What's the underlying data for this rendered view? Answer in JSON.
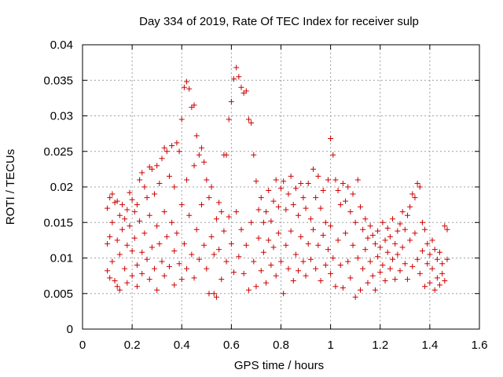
{
  "chart_data": {
    "type": "scatter",
    "title": "Day 334 of 2019, Rate Of TEC Index for receiver sulp",
    "xlabel": "GPS time / hours",
    "ylabel": "ROTI / TECUs",
    "xlim": [
      0,
      1.6
    ],
    "ylim": [
      0,
      0.04
    ],
    "x_ticks": [
      "0",
      "0.2",
      "0.4",
      "0.6",
      "0.8",
      "1",
      "1.2",
      "1.4",
      "1.6"
    ],
    "y_ticks": [
      "0",
      "0.005",
      "0.01",
      "0.015",
      "0.02",
      "0.025",
      "0.03",
      "0.035",
      "0.04"
    ],
    "grid": true,
    "marker": "+",
    "series": [
      {
        "color": "#cc0000",
        "points": [
          [
            0.1,
            0.017
          ],
          [
            0.1,
            0.012
          ],
          [
            0.1,
            0.0082
          ],
          [
            0.11,
            0.0185
          ],
          [
            0.11,
            0.013
          ],
          [
            0.11,
            0.0072
          ],
          [
            0.12,
            0.019
          ],
          [
            0.12,
            0.015
          ],
          [
            0.12,
            0.0095
          ],
          [
            0.13,
            0.0178
          ],
          [
            0.13,
            0.0068
          ],
          [
            0.14,
            0.018
          ],
          [
            0.14,
            0.0125
          ],
          [
            0.14,
            0.006
          ],
          [
            0.15,
            0.016
          ],
          [
            0.15,
            0.0105
          ],
          [
            0.15,
            0.0055
          ],
          [
            0.16,
            0.0175
          ],
          [
            0.16,
            0.014
          ],
          [
            0.17,
            0.0155
          ],
          [
            0.17,
            0.0085
          ],
          [
            0.18,
            0.0168
          ],
          [
            0.18,
            0.0118
          ],
          [
            0.18,
            0.0065
          ],
          [
            0.19,
            0.0192
          ],
          [
            0.19,
            0.0145
          ],
          [
            0.2,
            0.0182
          ],
          [
            0.2,
            0.011
          ],
          [
            0.2,
            0.0075
          ],
          [
            0.21,
            0.0165
          ],
          [
            0.21,
            0.0128
          ],
          [
            0.22,
            0.0175
          ],
          [
            0.22,
            0.009
          ],
          [
            0.22,
            0.006
          ],
          [
            0.23,
            0.021
          ],
          [
            0.23,
            0.0152
          ],
          [
            0.24,
            0.022
          ],
          [
            0.24,
            0.0108
          ],
          [
            0.24,
            0.0078
          ],
          [
            0.25,
            0.02
          ],
          [
            0.25,
            0.0135
          ],
          [
            0.26,
            0.0185
          ],
          [
            0.26,
            0.0098
          ],
          [
            0.27,
            0.0228
          ],
          [
            0.27,
            0.016
          ],
          [
            0.27,
            0.007
          ],
          [
            0.28,
            0.0225
          ],
          [
            0.28,
            0.0115
          ],
          [
            0.29,
            0.019
          ],
          [
            0.29,
            0.0085
          ],
          [
            0.3,
            0.023
          ],
          [
            0.3,
            0.0145
          ],
          [
            0.3,
            0.0055
          ],
          [
            0.31,
            0.0205
          ],
          [
            0.31,
            0.012
          ],
          [
            0.32,
            0.024
          ],
          [
            0.32,
            0.0095
          ],
          [
            0.33,
            0.0255
          ],
          [
            0.33,
            0.0165
          ],
          [
            0.33,
            0.0075
          ],
          [
            0.34,
            0.025
          ],
          [
            0.34,
            0.013
          ],
          [
            0.35,
            0.0215
          ],
          [
            0.35,
            0.0088
          ],
          [
            0.36,
            0.0258
          ],
          [
            0.36,
            0.015
          ],
          [
            0.37,
            0.02
          ],
          [
            0.37,
            0.011
          ],
          [
            0.37,
            0.0062
          ],
          [
            0.38,
            0.0262
          ],
          [
            0.38,
            0.0135
          ],
          [
            0.39,
            0.025
          ],
          [
            0.39,
            0.0092
          ],
          [
            0.4,
            0.0295
          ],
          [
            0.4,
            0.0175
          ],
          [
            0.4,
            0.007
          ],
          [
            0.41,
            0.034
          ],
          [
            0.41,
            0.012
          ],
          [
            0.42,
            0.0348
          ],
          [
            0.42,
            0.021
          ],
          [
            0.42,
            0.0085
          ],
          [
            0.43,
            0.0338
          ],
          [
            0.43,
            0.016
          ],
          [
            0.44,
            0.0312
          ],
          [
            0.44,
            0.0105
          ],
          [
            0.45,
            0.0315
          ],
          [
            0.45,
            0.023
          ],
          [
            0.45,
            0.0072
          ],
          [
            0.46,
            0.0272
          ],
          [
            0.46,
            0.014
          ],
          [
            0.47,
            0.0245
          ],
          [
            0.47,
            0.0098
          ],
          [
            0.48,
            0.0255
          ],
          [
            0.48,
            0.0175
          ],
          [
            0.49,
            0.0235
          ],
          [
            0.49,
            0.0118
          ],
          [
            0.5,
            0.021
          ],
          [
            0.5,
            0.0085
          ],
          [
            0.51,
            0.0185
          ],
          [
            0.51,
            0.005
          ],
          [
            0.52,
            0.02
          ],
          [
            0.52,
            0.013
          ],
          [
            0.53,
            0.005
          ],
          [
            0.53,
            0.0105
          ],
          [
            0.54,
            0.0155
          ],
          [
            0.54,
            0.0045
          ],
          [
            0.55,
            0.0178
          ],
          [
            0.55,
            0.0112
          ],
          [
            0.56,
            0.0165
          ],
          [
            0.56,
            0.007
          ],
          [
            0.57,
            0.0245
          ],
          [
            0.57,
            0.0138
          ],
          [
            0.58,
            0.0245
          ],
          [
            0.58,
            0.0095
          ],
          [
            0.59,
            0.0295
          ],
          [
            0.59,
            0.0158
          ],
          [
            0.6,
            0.032
          ],
          [
            0.6,
            0.012
          ],
          [
            0.61,
            0.0352
          ],
          [
            0.61,
            0.008
          ],
          [
            0.62,
            0.0368
          ],
          [
            0.62,
            0.0165
          ],
          [
            0.63,
            0.0355
          ],
          [
            0.63,
            0.0102
          ],
          [
            0.64,
            0.034
          ],
          [
            0.64,
            0.014
          ],
          [
            0.65,
            0.0332
          ],
          [
            0.65,
            0.0078
          ],
          [
            0.66,
            0.0335
          ],
          [
            0.66,
            0.0118
          ],
          [
            0.67,
            0.0295
          ],
          [
            0.67,
            0.0055
          ],
          [
            0.68,
            0.029
          ],
          [
            0.68,
            0.015
          ],
          [
            0.69,
            0.0245
          ],
          [
            0.69,
            0.0095
          ],
          [
            0.7,
            0.0208
          ],
          [
            0.7,
            0.006
          ],
          [
            0.71,
            0.0168
          ],
          [
            0.71,
            0.0128
          ],
          [
            0.72,
            0.0185
          ],
          [
            0.72,
            0.0082
          ],
          [
            0.73,
            0.015
          ],
          [
            0.73,
            0.0108
          ],
          [
            0.74,
            0.0165
          ],
          [
            0.74,
            0.0065
          ],
          [
            0.75,
            0.0195
          ],
          [
            0.75,
            0.0125
          ],
          [
            0.76,
            0.0152
          ],
          [
            0.76,
            0.009
          ],
          [
            0.77,
            0.018
          ],
          [
            0.77,
            0.0115
          ],
          [
            0.78,
            0.021
          ],
          [
            0.78,
            0.0075
          ],
          [
            0.79,
            0.0172
          ],
          [
            0.79,
            0.0135
          ],
          [
            0.8,
            0.0198
          ],
          [
            0.8,
            0.0095
          ],
          [
            0.81,
            0.0208
          ],
          [
            0.81,
            0.005
          ],
          [
            0.82,
            0.0168
          ],
          [
            0.82,
            0.0118
          ],
          [
            0.83,
            0.019
          ],
          [
            0.83,
            0.0085
          ],
          [
            0.84,
            0.0215
          ],
          [
            0.84,
            0.0138
          ],
          [
            0.85,
            0.0175
          ],
          [
            0.85,
            0.0068
          ],
          [
            0.86,
            0.0198
          ],
          [
            0.86,
            0.0105
          ],
          [
            0.87,
            0.016
          ],
          [
            0.87,
            0.0082
          ],
          [
            0.88,
            0.0205
          ],
          [
            0.88,
            0.013
          ],
          [
            0.89,
            0.0185
          ],
          [
            0.89,
            0.0095
          ],
          [
            0.9,
            0.017
          ],
          [
            0.9,
            0.0075
          ],
          [
            0.91,
            0.0205
          ],
          [
            0.91,
            0.012
          ],
          [
            0.92,
            0.0155
          ],
          [
            0.92,
            0.0098
          ],
          [
            0.93,
            0.0225
          ],
          [
            0.93,
            0.014
          ],
          [
            0.94,
            0.0185
          ],
          [
            0.94,
            0.0085
          ],
          [
            0.95,
            0.0215
          ],
          [
            0.95,
            0.0118
          ],
          [
            0.96,
            0.017
          ],
          [
            0.96,
            0.0068
          ],
          [
            0.97,
            0.0195
          ],
          [
            0.97,
            0.0132
          ],
          [
            0.98,
            0.015
          ],
          [
            0.98,
            0.009
          ],
          [
            0.99,
            0.021
          ],
          [
            0.99,
            0.0112
          ],
          [
            1.0,
            0.0268
          ],
          [
            1.0,
            0.0145
          ],
          [
            1.0,
            0.0078
          ],
          [
            1.01,
            0.0245
          ],
          [
            1.01,
            0.01
          ],
          [
            1.02,
            0.021
          ],
          [
            1.02,
            0.006
          ],
          [
            1.03,
            0.0195
          ],
          [
            1.03,
            0.0125
          ],
          [
            1.04,
            0.0175
          ],
          [
            1.04,
            0.009
          ],
          [
            1.05,
            0.0205
          ],
          [
            1.05,
            0.0058
          ],
          [
            1.06,
            0.018
          ],
          [
            1.06,
            0.0135
          ],
          [
            1.07,
            0.02
          ],
          [
            1.07,
            0.0095
          ],
          [
            1.08,
            0.0165
          ],
          [
            1.08,
            0.0072
          ],
          [
            1.09,
            0.019
          ],
          [
            1.09,
            0.0118
          ],
          [
            1.1,
            0.015
          ],
          [
            1.1,
            0.0045
          ],
          [
            1.11,
            0.021
          ],
          [
            1.11,
            0.01
          ],
          [
            1.12,
            0.0172
          ],
          [
            1.12,
            0.0055
          ],
          [
            1.13,
            0.014
          ],
          [
            1.13,
            0.0085
          ],
          [
            1.14,
            0.0155
          ],
          [
            1.14,
            0.0112
          ],
          [
            1.15,
            0.0128
          ],
          [
            1.15,
            0.0065
          ],
          [
            1.16,
            0.0145
          ],
          [
            1.16,
            0.0095
          ],
          [
            1.17,
            0.0132
          ],
          [
            1.17,
            0.0075
          ],
          [
            1.18,
            0.012
          ],
          [
            1.18,
            0.0055
          ],
          [
            1.19,
            0.0138
          ],
          [
            1.19,
            0.0102
          ],
          [
            1.2,
            0.0115
          ],
          [
            1.2,
            0.008
          ],
          [
            1.21,
            0.015
          ],
          [
            1.21,
            0.009
          ],
          [
            1.22,
            0.0125
          ],
          [
            1.22,
            0.0068
          ],
          [
            1.23,
            0.0142
          ],
          [
            1.23,
            0.0108
          ],
          [
            1.24,
            0.013
          ],
          [
            1.24,
            0.0085
          ],
          [
            1.25,
            0.0155
          ],
          [
            1.25,
            0.0098
          ],
          [
            1.26,
            0.012
          ],
          [
            1.26,
            0.007
          ],
          [
            1.27,
            0.0138
          ],
          [
            1.27,
            0.0105
          ],
          [
            1.28,
            0.0148
          ],
          [
            1.28,
            0.0082
          ],
          [
            1.29,
            0.0165
          ],
          [
            1.29,
            0.0115
          ],
          [
            1.3,
            0.014
          ],
          [
            1.3,
            0.0092
          ],
          [
            1.31,
            0.016
          ],
          [
            1.31,
            0.007
          ],
          [
            1.32,
            0.0172
          ],
          [
            1.32,
            0.0125
          ],
          [
            1.33,
            0.019
          ],
          [
            1.33,
            0.0088
          ],
          [
            1.34,
            0.0185
          ],
          [
            1.34,
            0.0135
          ],
          [
            1.35,
            0.0205
          ],
          [
            1.35,
            0.0098
          ],
          [
            1.36,
            0.02
          ],
          [
            1.36,
            0.0078
          ],
          [
            1.37,
            0.015
          ],
          [
            1.37,
            0.011
          ],
          [
            1.38,
            0.014
          ],
          [
            1.38,
            0.006
          ],
          [
            1.39,
            0.012
          ],
          [
            1.39,
            0.0092
          ],
          [
            1.4,
            0.0105
          ],
          [
            1.4,
            0.0065
          ],
          [
            1.41,
            0.0125
          ],
          [
            1.41,
            0.0085
          ],
          [
            1.42,
            0.0112
          ],
          [
            1.42,
            0.0055
          ],
          [
            1.43,
            0.0098
          ],
          [
            1.43,
            0.0072
          ],
          [
            1.44,
            0.0108
          ],
          [
            1.44,
            0.0062
          ],
          [
            1.45,
            0.0092
          ],
          [
            1.45,
            0.0078
          ],
          [
            1.46,
            0.0145
          ],
          [
            1.46,
            0.0068
          ],
          [
            1.47,
            0.014
          ],
          [
            1.47,
            0.0098
          ]
        ]
      }
    ]
  }
}
